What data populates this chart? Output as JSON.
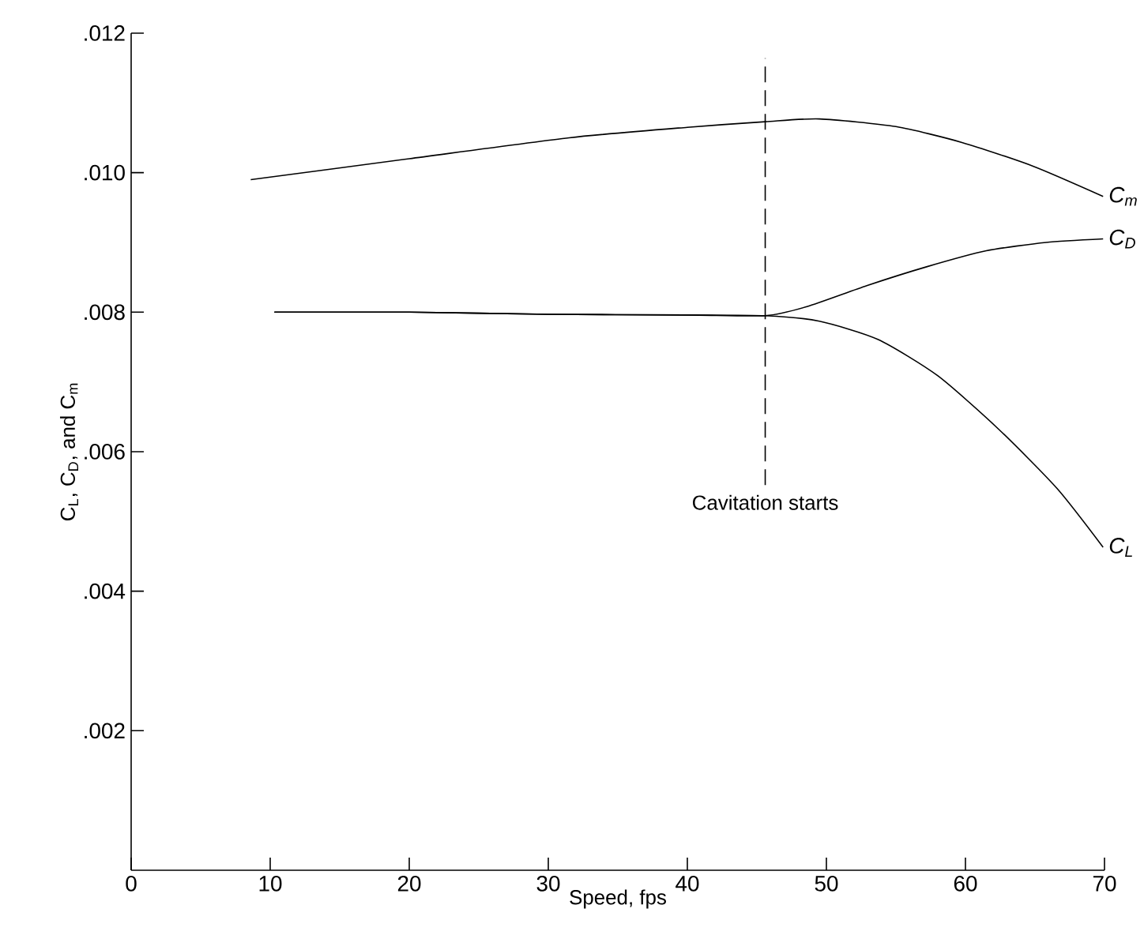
{
  "chart_data": {
    "type": "line",
    "xlabel": "Speed, fps",
    "ylabel": "C$_{L}$, C$_{D}$, and C$_{m}$",
    "xlim": [
      0,
      70
    ],
    "ylim": [
      0,
      0.012
    ],
    "xticks": [
      0,
      10,
      20,
      30,
      40,
      50,
      60,
      70
    ],
    "yticks": [
      {
        "value": 0.002,
        "label": ".002"
      },
      {
        "value": 0.004,
        "label": ".004"
      },
      {
        "value": 0.006,
        "label": ".006"
      },
      {
        "value": 0.008,
        "label": ".008"
      },
      {
        "value": 0.01,
        "label": ".010"
      },
      {
        "value": 0.012,
        "label": ".012"
      }
    ],
    "grid": false,
    "marker": "none",
    "line_style": "solid",
    "ref_lines": [
      {
        "axis": "x",
        "value": 45.6,
        "label": "Cavitation starts",
        "line_style": "dashed"
      }
    ],
    "series": [
      {
        "name": "C$_{m}$",
        "color": "#000000",
        "x": [
          8.6,
          20,
          31.5,
          40,
          45.6,
          49.5,
          55,
          59.8,
          64.9,
          69.9
        ],
        "values": [
          0.0099,
          0.0102,
          0.0105,
          0.01065,
          0.01073,
          0.01077,
          0.01066,
          0.01043,
          0.01009,
          0.00966
        ]
      },
      {
        "name": "C$_{D}$",
        "color": "#000000",
        "x": [
          10.3,
          20,
          30,
          40,
          45.6,
          48.6,
          52.9,
          57.2,
          61.5,
          65.8,
          69.9
        ],
        "values": [
          0.008,
          0.008,
          0.00797,
          0.00796,
          0.00795,
          0.00808,
          0.00838,
          0.00865,
          0.00888,
          0.009,
          0.00905
        ]
      },
      {
        "name": "C$_{L}$",
        "color": "#000000",
        "x": [
          10.3,
          20,
          30,
          40,
          45.6,
          49.5,
          53.7,
          58,
          62.4,
          66.6,
          69.9
        ],
        "values": [
          0.008,
          0.008,
          0.00797,
          0.00796,
          0.00795,
          0.00787,
          0.00761,
          0.00709,
          0.00632,
          0.00547,
          0.00463
        ]
      }
    ]
  }
}
